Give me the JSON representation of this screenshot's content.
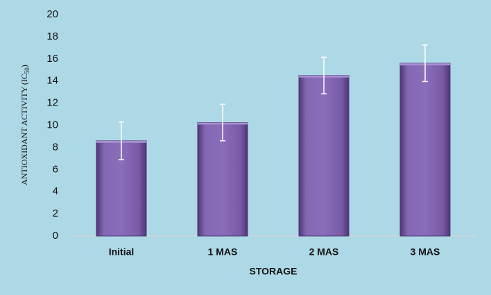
{
  "chart_data": {
    "type": "bar",
    "y_label": [
      "ANTIOXIDANT ACTIVITY (IC",
      "50",
      ")"
    ],
    "x_label": "STORAGE",
    "categories": [
      "Initial",
      "1 MAS",
      "2 MAS",
      "3 MAS"
    ],
    "values": [
      8.6,
      10.25,
      14.5,
      15.6
    ],
    "errors": [
      1.7,
      1.65,
      1.65,
      1.65
    ],
    "color": "#7a5aa6",
    "ylim": [
      0,
      20
    ],
    "yticks": [
      0,
      2,
      4,
      6,
      8,
      10,
      12,
      14,
      16,
      18,
      20
    ],
    "grid": false
  }
}
